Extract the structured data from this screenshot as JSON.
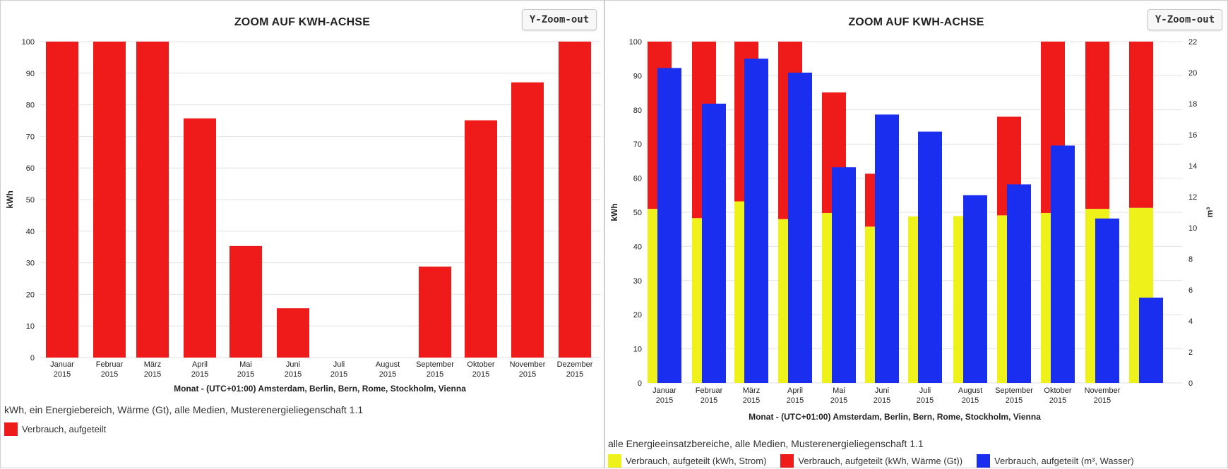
{
  "colors": {
    "strom": "#eef21a",
    "waerme": "#ef1a1a",
    "wasser": "#1a2ef0",
    "grid": "#e2e2e2"
  },
  "left": {
    "title": "ZOOM AUF KWH-ACHSE",
    "zoom_button": "Y-Zoom-out",
    "caption": "kWh, ein Energiebereich, Wärme (Gt), alle Medien, Musterenergieliegenschaft 1.1",
    "legend": [
      {
        "label": "Verbrauch, aufgeteilt",
        "color": "#ef1a1a"
      }
    ]
  },
  "right": {
    "title": "ZOOM AUF KWH-ACHSE",
    "zoom_button": "Y-Zoom-out",
    "caption": "alle Energieeinsatzbereiche, alle Medien, Musterenergieliegenschaft 1.1",
    "legend": [
      {
        "label": "Verbrauch, aufgeteilt (kWh, Strom)",
        "color": "#eef21a"
      },
      {
        "label": "Verbrauch, aufgeteilt (kWh, Wärme (Gt))",
        "color": "#ef1a1a"
      },
      {
        "label": "Verbrauch, aufgeteilt (m³, Wasser)",
        "color": "#1a2ef0"
      }
    ]
  },
  "chart_data": [
    {
      "type": "bar",
      "title": "ZOOM AUF KWH-ACHSE",
      "categories": [
        "Januar 2015",
        "Februar 2015",
        "März 2015",
        "April 2015",
        "Mai 2015",
        "Juni 2015",
        "Juli 2015",
        "August 2015",
        "September 2015",
        "Oktober 2015",
        "November 2015",
        "Dezember 2015"
      ],
      "xlabel": "Monat - (UTC+01:00) Amsterdam, Berlin, Bern, Rome, Stockholm, Vienna",
      "ylabel": "kWh",
      "ylim": [
        0,
        100
      ],
      "yticks": [
        0,
        10,
        20,
        30,
        40,
        50,
        60,
        70,
        80,
        90,
        100
      ],
      "series": [
        {
          "name": "Verbrauch, aufgeteilt",
          "color": "#ef1a1a",
          "values": [
            100,
            100,
            100,
            75.7,
            35.3,
            15.6,
            0,
            0,
            28.8,
            75.1,
            87.1,
            100
          ]
        }
      ],
      "grid": true,
      "legend": "bottom-left"
    },
    {
      "type": "bar",
      "title": "ZOOM AUF KWH-ACHSE",
      "categories": [
        "Januar 2015",
        "Februar 2015",
        "März 2015",
        "April 2015",
        "Mai 2015",
        "Juni 2015",
        "Juli 2015",
        "August 2015",
        "September 2015",
        "Oktober 2015",
        "November 2015",
        ""
      ],
      "xlabel": "Monat - (UTC+01:00) Amsterdam, Berlin, Bern, Rome, Stockholm, Vienna",
      "ylabel": "kWh",
      "ylabel_right": "m³",
      "ylim": [
        0,
        100
      ],
      "ylim_right": [
        0,
        22
      ],
      "yticks": [
        0,
        10,
        20,
        30,
        40,
        50,
        60,
        70,
        80,
        90,
        100
      ],
      "yticks_right": [
        0,
        2,
        4,
        6,
        8,
        10,
        12,
        14,
        16,
        18,
        20,
        22
      ],
      "stacked_kwh": true,
      "series": [
        {
          "name": "Verbrauch, aufgeteilt (kWh, Strom)",
          "axis": "left",
          "stack": "kwh",
          "color": "#eef21a",
          "values": [
            51,
            48.3,
            53.2,
            48,
            49.8,
            45.8,
            48.8,
            48.9,
            49.1,
            49.8,
            51,
            51.3
          ]
        },
        {
          "name": "Verbrauch, aufgeteilt (kWh, Wärme (Gt))",
          "axis": "left",
          "stack": "kwh",
          "color": "#ef1a1a",
          "values": [
            49,
            51.7,
            46.8,
            52,
            35.3,
            15.5,
            0,
            0,
            28.9,
            50.2,
            49,
            48.7
          ]
        },
        {
          "name": "Verbrauch, aufgeteilt (m³, Wasser)",
          "axis": "right",
          "color": "#1a2ef0",
          "values": [
            20.3,
            18.0,
            20.9,
            20.0,
            13.9,
            17.3,
            16.2,
            12.1,
            12.8,
            15.3,
            10.6,
            5.5
          ]
        }
      ],
      "grid": true,
      "legend": "bottom-left"
    }
  ]
}
